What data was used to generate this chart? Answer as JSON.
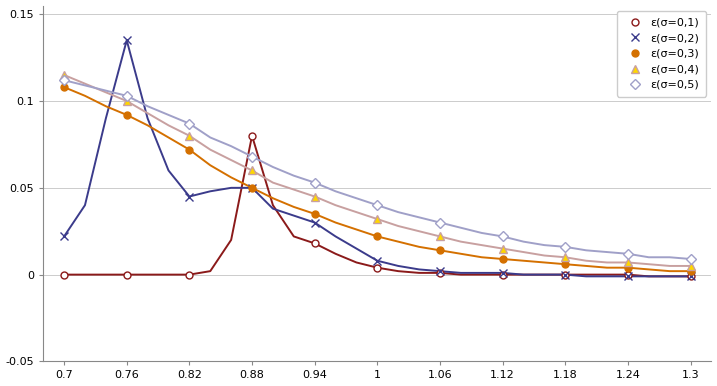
{
  "x_dense": [
    0.7,
    0.72,
    0.74,
    0.76,
    0.78,
    0.8,
    0.82,
    0.84,
    0.86,
    0.88,
    0.9,
    0.92,
    0.94,
    0.96,
    0.98,
    1.0,
    1.02,
    1.04,
    1.06,
    1.08,
    1.1,
    1.12,
    1.14,
    1.16,
    1.18,
    1.2,
    1.22,
    1.24,
    1.26,
    1.28,
    1.3
  ],
  "series": [
    {
      "label": "ε(σ=0,1)",
      "color": "#8B1A1A",
      "marker": "o",
      "markerfacecolor": "white",
      "markeredgecolor": "#8B1A1A",
      "markersize": 5,
      "linewidth": 1.4,
      "marker_x": [
        0.7,
        0.76,
        0.82,
        0.88,
        0.94,
        1.0,
        1.06,
        1.12,
        1.18,
        1.24,
        1.3
      ],
      "marker_y": [
        0.0,
        0.0,
        0.0,
        0.08,
        0.018,
        0.004,
        0.001,
        0.0,
        0.0,
        0.0,
        -0.001
      ],
      "values": [
        0.0,
        0.0,
        0.0,
        0.0,
        0.0,
        0.0,
        0.0,
        0.002,
        0.02,
        0.08,
        0.04,
        0.022,
        0.018,
        0.012,
        0.007,
        0.004,
        0.002,
        0.001,
        0.001,
        0.0,
        0.0,
        0.0,
        0.0,
        0.0,
        0.0,
        0.0,
        0.0,
        0.0,
        -0.001,
        -0.001,
        -0.001
      ]
    },
    {
      "label": "ε(σ=0,2)",
      "color": "#3B3B8B",
      "marker": "x",
      "markerfacecolor": "#3B3B8B",
      "markeredgecolor": "#3B3B8B",
      "markersize": 6,
      "linewidth": 1.4,
      "marker_x": [
        0.7,
        0.76,
        0.82,
        0.88,
        0.94,
        1.0,
        1.06,
        1.12,
        1.18,
        1.24,
        1.3
      ],
      "marker_y": [
        0.022,
        0.135,
        0.045,
        0.05,
        0.03,
        0.008,
        0.002,
        0.001,
        0.0,
        -0.001,
        -0.001
      ],
      "values": [
        0.022,
        0.04,
        0.09,
        0.135,
        0.09,
        0.06,
        0.045,
        0.048,
        0.05,
        0.05,
        0.038,
        0.034,
        0.03,
        0.022,
        0.015,
        0.008,
        0.005,
        0.003,
        0.002,
        0.001,
        0.001,
        0.001,
        0.0,
        0.0,
        0.0,
        -0.001,
        -0.001,
        -0.001,
        -0.001,
        -0.001,
        -0.001
      ]
    },
    {
      "label": "ε(σ=0,3)",
      "color": "#D47000",
      "marker": "o",
      "markerfacecolor": "#D47000",
      "markeredgecolor": "#D47000",
      "markersize": 5,
      "linewidth": 1.4,
      "marker_x": [
        0.7,
        0.76,
        0.82,
        0.88,
        0.94,
        1.0,
        1.06,
        1.12,
        1.18,
        1.24,
        1.3
      ],
      "marker_y": [
        0.108,
        0.092,
        0.072,
        0.05,
        0.035,
        0.022,
        0.014,
        0.009,
        0.006,
        0.004,
        0.002
      ],
      "values": [
        0.108,
        0.103,
        0.097,
        0.092,
        0.086,
        0.079,
        0.072,
        0.063,
        0.056,
        0.05,
        0.044,
        0.039,
        0.035,
        0.03,
        0.026,
        0.022,
        0.019,
        0.016,
        0.014,
        0.012,
        0.01,
        0.009,
        0.008,
        0.007,
        0.006,
        0.005,
        0.004,
        0.004,
        0.003,
        0.002,
        0.002
      ]
    },
    {
      "label": "ε(σ=0,4)",
      "color": "#C8A0A0",
      "marker": "^",
      "markerfacecolor": "#FFD700",
      "markeredgecolor": "#C8A0A0",
      "markersize": 6,
      "linewidth": 1.4,
      "marker_x": [
        0.7,
        0.76,
        0.82,
        0.88,
        0.94,
        1.0,
        1.06,
        1.12,
        1.18,
        1.24,
        1.3
      ],
      "marker_y": [
        0.115,
        0.1,
        0.08,
        0.06,
        0.045,
        0.032,
        0.022,
        0.015,
        0.01,
        0.007,
        0.005
      ],
      "values": [
        0.115,
        0.11,
        0.105,
        0.1,
        0.093,
        0.086,
        0.08,
        0.072,
        0.066,
        0.06,
        0.053,
        0.049,
        0.045,
        0.04,
        0.036,
        0.032,
        0.028,
        0.025,
        0.022,
        0.019,
        0.017,
        0.015,
        0.013,
        0.011,
        0.01,
        0.008,
        0.007,
        0.007,
        0.006,
        0.005,
        0.005
      ]
    },
    {
      "label": "ε(σ=0,5)",
      "color": "#A0A0C8",
      "marker": "D",
      "markerfacecolor": "white",
      "markeredgecolor": "#A0A0C8",
      "markersize": 5,
      "linewidth": 1.4,
      "marker_x": [
        0.7,
        0.76,
        0.82,
        0.88,
        0.94,
        1.0,
        1.06,
        1.12,
        1.18,
        1.24,
        1.3
      ],
      "marker_y": [
        0.112,
        0.103,
        0.087,
        0.068,
        0.053,
        0.04,
        0.03,
        0.022,
        0.016,
        0.012,
        0.009
      ],
      "values": [
        0.112,
        0.109,
        0.106,
        0.103,
        0.097,
        0.092,
        0.087,
        0.079,
        0.074,
        0.068,
        0.062,
        0.057,
        0.053,
        0.048,
        0.044,
        0.04,
        0.036,
        0.033,
        0.03,
        0.027,
        0.024,
        0.022,
        0.019,
        0.017,
        0.016,
        0.014,
        0.013,
        0.012,
        0.01,
        0.01,
        0.009
      ]
    }
  ],
  "xlim": [
    0.68,
    1.32
  ],
  "ylim": [
    -0.05,
    0.155
  ],
  "xticks": [
    0.7,
    0.76,
    0.82,
    0.88,
    0.94,
    1.0,
    1.06,
    1.12,
    1.18,
    1.24,
    1.3
  ],
  "yticks": [
    -0.05,
    0.0,
    0.05,
    0.1,
    0.15
  ],
  "xtick_labels": [
    "0.7",
    "0.76",
    "0.82",
    "0.88",
    "0.94",
    "1",
    "1.06",
    "1.12",
    "1.18",
    "1.24",
    "1.3"
  ],
  "ytick_labels": [
    "-0.05",
    "0",
    "0.05",
    "0.1",
    "0.15"
  ],
  "grid_color": "#CCCCCC",
  "background_color": "#FFFFFF"
}
